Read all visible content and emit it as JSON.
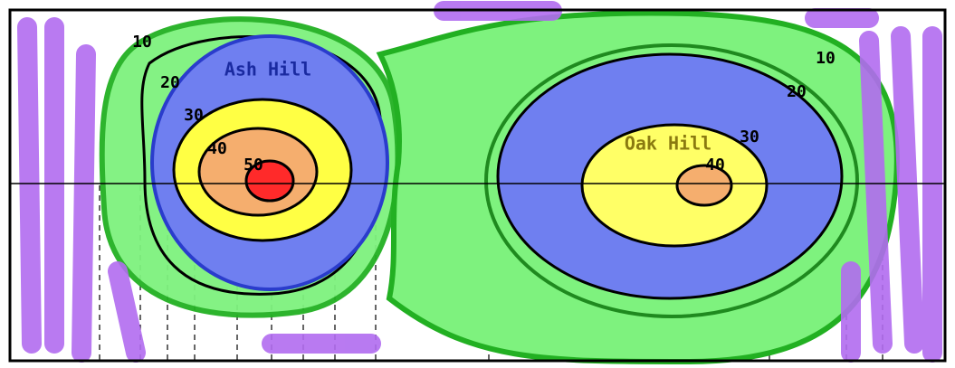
{
  "hills": [
    {
      "name": "Ash Hill",
      "contours": [
        10,
        20,
        30,
        40,
        50
      ]
    },
    {
      "name": "Oak Hill",
      "contours": [
        10,
        20,
        30,
        40
      ]
    }
  ]
}
